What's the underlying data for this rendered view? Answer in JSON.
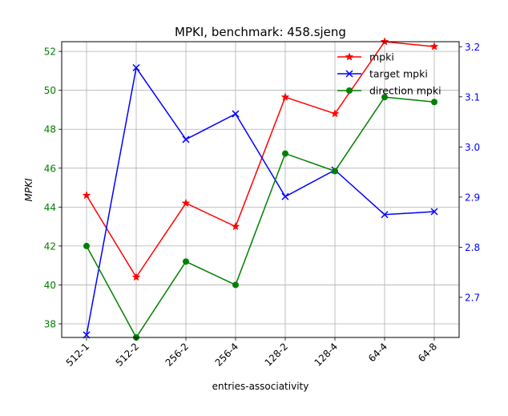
{
  "chart_data": {
    "type": "line",
    "title": "MPKI, benchmark: 458.sjeng",
    "xlabel": "entries-associativity",
    "ylabel": "MPKI",
    "categories": [
      "512-1",
      "512-2",
      "256-2",
      "256-4",
      "128-2",
      "128-4",
      "64-4",
      "64-8"
    ],
    "y_left": {
      "lim": [
        37.3,
        52.5
      ],
      "ticks": [
        "38",
        "40",
        "42",
        "44",
        "46",
        "48",
        "50",
        "52"
      ],
      "tick_color": "#008000"
    },
    "y_right": {
      "lim": [
        2.62,
        3.21
      ],
      "ticks": [
        "2.7",
        "2.8",
        "2.9",
        "3.0",
        "3.1",
        "3.2"
      ],
      "tick_color": "#0000ff"
    },
    "grid": true,
    "legend_position": "upper-right",
    "series": [
      {
        "name": "mpki",
        "axis": "left",
        "color": "#ff0000",
        "marker": "star",
        "values": [
          44.6,
          40.4,
          44.2,
          43.0,
          49.65,
          48.8,
          52.5,
          52.25
        ]
      },
      {
        "name": "target mpki",
        "axis": "right",
        "color": "#0000ff",
        "marker": "x",
        "values": [
          2.625,
          3.158,
          3.015,
          3.066,
          2.901,
          2.954,
          2.865,
          2.871
        ]
      },
      {
        "name": "direction mpki",
        "axis": "left",
        "color": "#008000",
        "marker": "circle",
        "values": [
          42.0,
          37.3,
          41.2,
          40.0,
          46.75,
          45.85,
          49.65,
          49.4
        ]
      }
    ]
  }
}
